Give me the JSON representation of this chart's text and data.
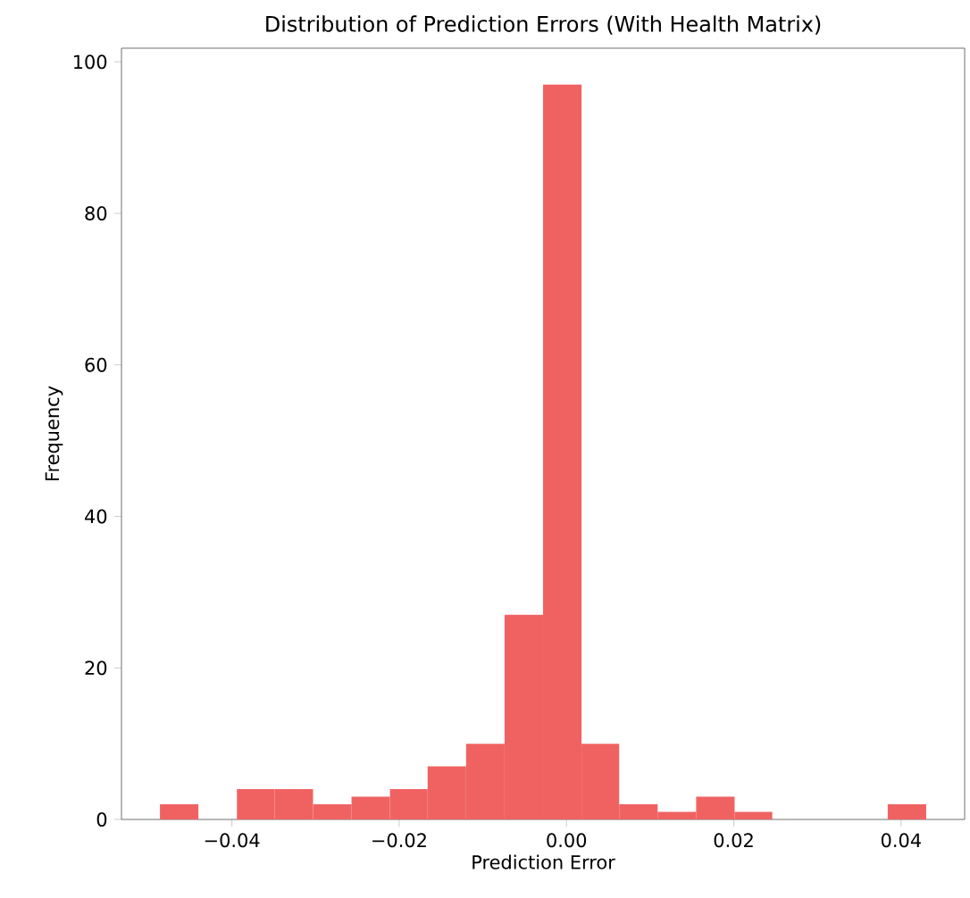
{
  "chart_data": {
    "type": "histogram",
    "title": "Distribution of Prediction Errors (With Health Matrix)",
    "xlabel": "Prediction Error",
    "ylabel": "Frequency",
    "bins": [
      -0.0486,
      -0.044,
      -0.0394,
      -0.0349,
      -0.0303,
      -0.0257,
      -0.0211,
      -0.0166,
      -0.012,
      -0.0074,
      -0.0028,
      0.0018,
      0.0063,
      0.0109,
      0.0155,
      0.0201,
      0.0246,
      0.0384,
      0.043
    ],
    "values": [
      2,
      0,
      4,
      4,
      2,
      3,
      4,
      7,
      10,
      27,
      97,
      10,
      2,
      1,
      3,
      1,
      0,
      2
    ],
    "color": "#f06262",
    "xlim": [
      -0.0532,
      0.0476
    ],
    "ylim": [
      0,
      101.8
    ],
    "xticks": [
      {
        "value": -0.04,
        "label": "−0.04"
      },
      {
        "value": -0.02,
        "label": "−0.02"
      },
      {
        "value": 0,
        "label": "0.00"
      },
      {
        "value": 0.02,
        "label": "0.02"
      },
      {
        "value": 0.04,
        "label": "0.04"
      }
    ],
    "yticks": [
      0,
      20,
      40,
      60,
      80,
      100
    ],
    "grid": false
  }
}
